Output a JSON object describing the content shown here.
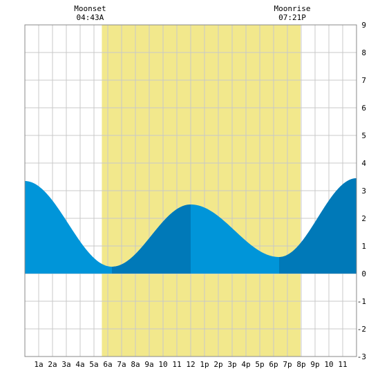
{
  "chart_data": {
    "type": "area",
    "title": "",
    "xlabel": "",
    "ylabel": "",
    "x_tick_labels": [
      "1a",
      "2a",
      "3a",
      "4a",
      "5a",
      "6a",
      "7a",
      "8a",
      "9a",
      "10",
      "11",
      "12",
      "1p",
      "2p",
      "3p",
      "4p",
      "5p",
      "6p",
      "7p",
      "8p",
      "9p",
      "10",
      "11"
    ],
    "xlim_hours": [
      0,
      24
    ],
    "ylim": [
      -3,
      9
    ],
    "y_ticks": [
      "-3",
      "-2",
      "-1",
      "0",
      "1",
      "2",
      "3",
      "4",
      "5",
      "6",
      "7",
      "8",
      "9"
    ],
    "grid": true,
    "daylight_band": {
      "start_hour": 5.57,
      "end_hour": 19.95,
      "color": "#f2e88c"
    },
    "events": [
      {
        "name": "Moonset",
        "time": "04:43A",
        "hour": 4.72
      },
      {
        "name": "Moonrise",
        "time": "07:21P",
        "hour": 19.35
      }
    ],
    "tide_series": {
      "name": "",
      "extrema": [
        {
          "hour": 0.0,
          "height": 3.35
        },
        {
          "hour": 6.3,
          "height": 0.25
        },
        {
          "hour": 12.0,
          "height": 2.5
        },
        {
          "hour": 18.4,
          "height": 0.6
        },
        {
          "hour": 24.0,
          "height": 3.45
        }
      ],
      "light_color": "#0095d9",
      "dark_color": "#0079b8",
      "dark_ranges": [
        [
          6.3,
          12.0
        ],
        [
          18.4,
          24.0
        ]
      ]
    }
  }
}
